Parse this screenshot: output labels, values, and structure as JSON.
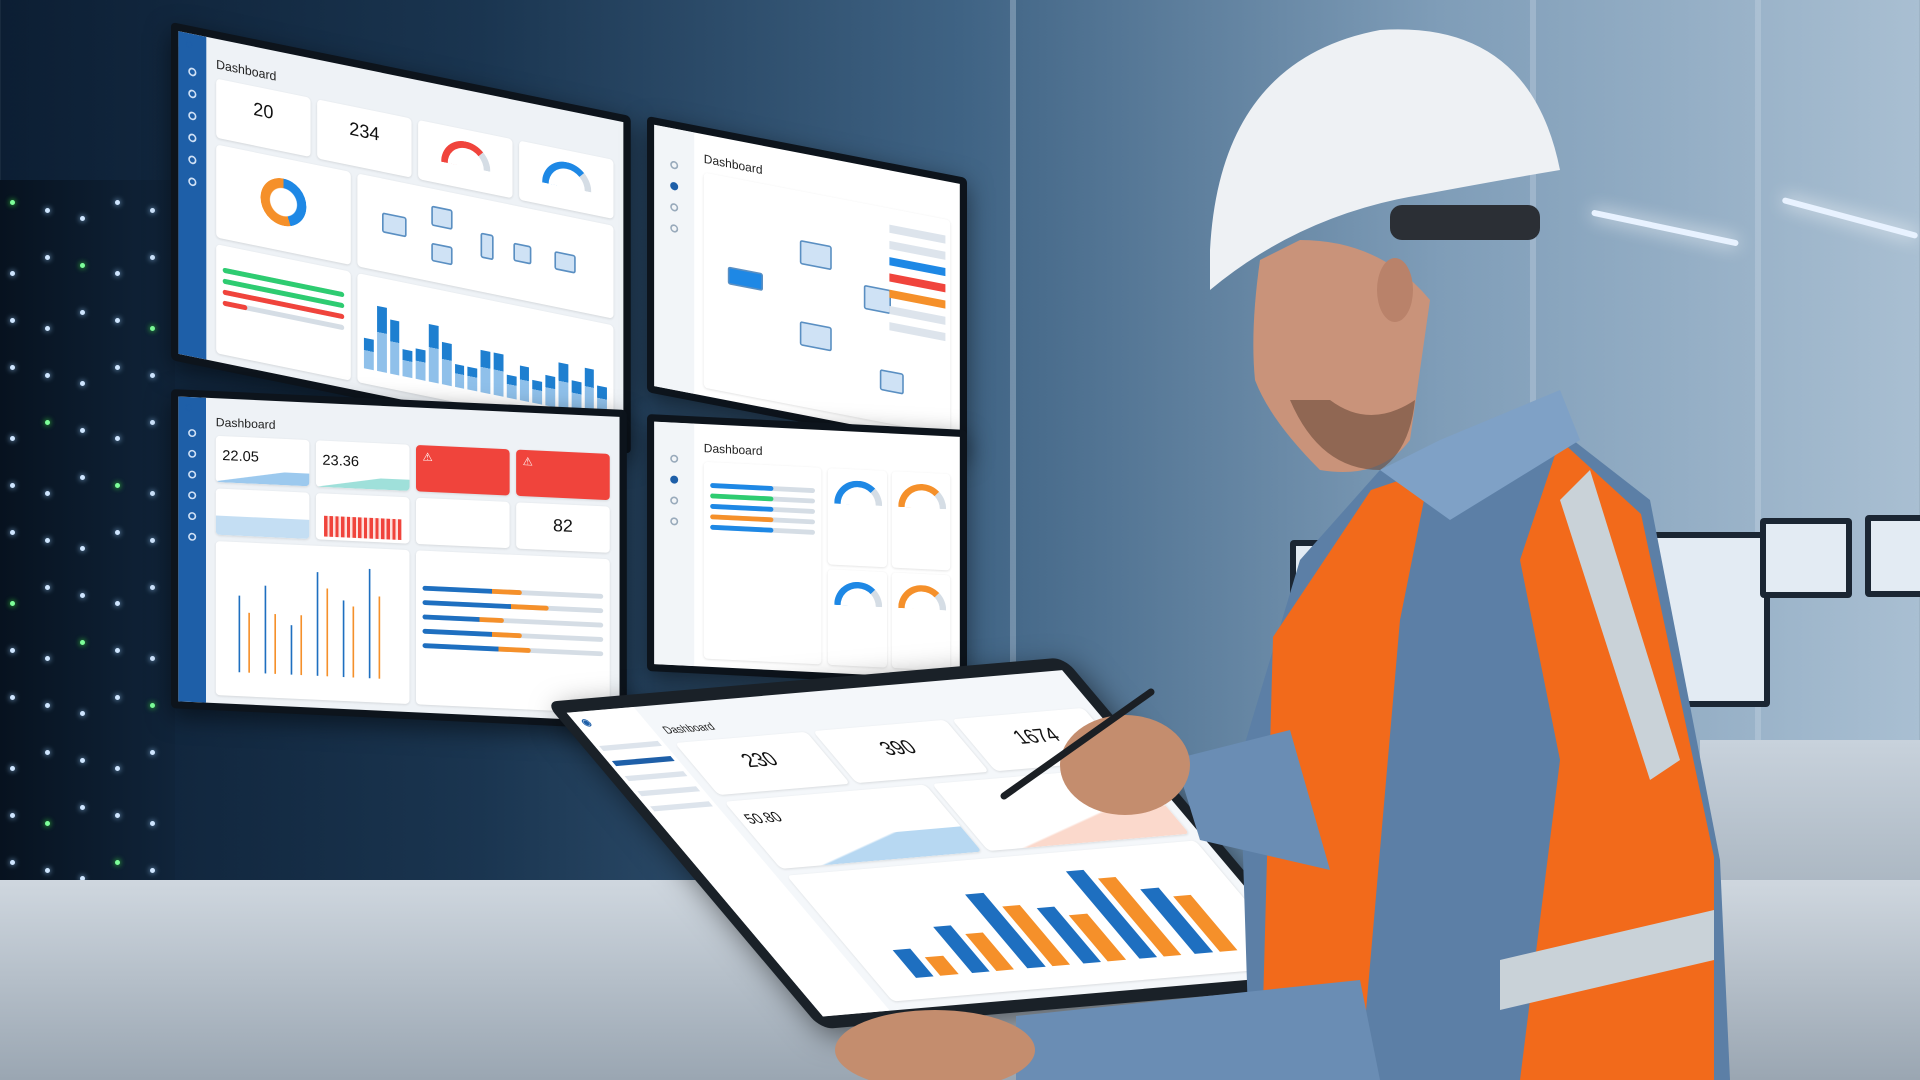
{
  "scene": "worker-reviewing-dashboards",
  "colors": {
    "accent": "#1e5fa8",
    "orange": "#f5902a",
    "alert": "#f0443c",
    "vest": "#f26a1b",
    "green": "#2ecc71"
  },
  "monitor_top_left": {
    "title": "Dashboard",
    "kpi1": "20",
    "kpi2": "234",
    "bars": [
      40,
      85,
      70,
      35,
      40,
      75,
      55,
      30,
      30,
      55,
      55,
      30,
      45,
      30,
      40,
      60,
      40,
      60,
      40
    ]
  },
  "monitor_bottom_left": {
    "title": "Dashboard",
    "kpi1": "22.05",
    "kpi2": "23.36",
    "kpi3": "82",
    "bars_blue": [
      70,
      80,
      45,
      95,
      70,
      100
    ],
    "bars_orange": [
      55,
      55,
      55,
      80,
      65,
      75
    ],
    "progress": [
      0.55,
      0.7,
      0.45,
      0.55,
      0.6
    ]
  },
  "monitor_top_right": {
    "title": "Dashboard"
  },
  "monitor_bottom_right": {
    "title": "Dashboard"
  },
  "tablet": {
    "title": "Dashboard",
    "kpi1": "230",
    "kpi2": "390",
    "kpi3": "1674",
    "kpi4": "50.80",
    "bars_blue": [
      30,
      50,
      80,
      60,
      95,
      70
    ],
    "bars_orange": [
      20,
      40,
      65,
      50,
      85,
      60
    ]
  }
}
